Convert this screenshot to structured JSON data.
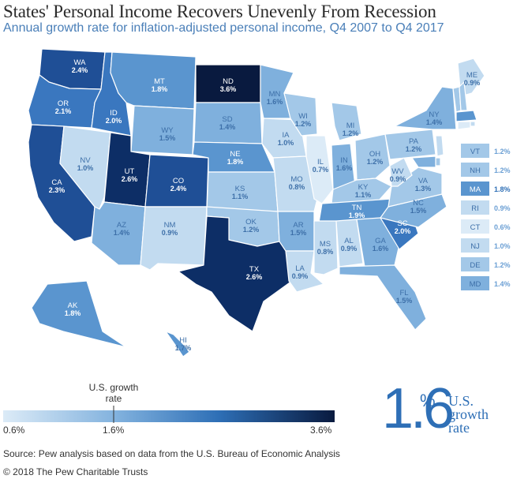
{
  "header": {
    "title": "States' Personal Income Recovers Unevenly From Recession",
    "subtitle": "Annual growth rate for inflation-adjusted personal income, Q4 2007 to Q4 2017"
  },
  "colors": {
    "scale": [
      "#dcebf7",
      "#c2dbf0",
      "#a3c8e8",
      "#7fb0dd",
      "#5a95cf",
      "#3a77bf",
      "#1f4f96",
      "#0d2e66",
      "#091a3f"
    ],
    "label_light": "#ffffff",
    "label_dark": "#3d6fa8",
    "accent": "#2e6fb6"
  },
  "chart_data": {
    "type": "choropleth",
    "title": "States' Personal Income Recovers Unevenly From Recession",
    "subtitle": "Annual growth rate for inflation-adjusted personal income, Q4 2007 to Q4 2017",
    "unit": "%",
    "scale_min": 0.6,
    "scale_max": 3.6,
    "us_rate": 1.6,
    "states": [
      {
        "abbr": "WA",
        "value": 2.4
      },
      {
        "abbr": "OR",
        "value": 2.1
      },
      {
        "abbr": "CA",
        "value": 2.3
      },
      {
        "abbr": "ID",
        "value": 2.0
      },
      {
        "abbr": "NV",
        "value": 1.0
      },
      {
        "abbr": "MT",
        "value": 1.8
      },
      {
        "abbr": "WY",
        "value": 1.5
      },
      {
        "abbr": "UT",
        "value": 2.6
      },
      {
        "abbr": "AZ",
        "value": 1.4
      },
      {
        "abbr": "CO",
        "value": 2.4
      },
      {
        "abbr": "NM",
        "value": 0.9
      },
      {
        "abbr": "ND",
        "value": 3.6
      },
      {
        "abbr": "SD",
        "value": 1.4
      },
      {
        "abbr": "NE",
        "value": 1.8
      },
      {
        "abbr": "KS",
        "value": 1.1
      },
      {
        "abbr": "OK",
        "value": 1.2
      },
      {
        "abbr": "TX",
        "value": 2.6
      },
      {
        "abbr": "MN",
        "value": 1.6
      },
      {
        "abbr": "IA",
        "value": 1.0
      },
      {
        "abbr": "MO",
        "value": 0.8
      },
      {
        "abbr": "AR",
        "value": 1.5
      },
      {
        "abbr": "LA",
        "value": 0.9
      },
      {
        "abbr": "WI",
        "value": 1.2
      },
      {
        "abbr": "IL",
        "value": 0.7
      },
      {
        "abbr": "MI",
        "value": 1.2
      },
      {
        "abbr": "IN",
        "value": 1.6
      },
      {
        "abbr": "OH",
        "value": 1.2
      },
      {
        "abbr": "KY",
        "value": 1.1
      },
      {
        "abbr": "TN",
        "value": 1.9
      },
      {
        "abbr": "MS",
        "value": 0.8
      },
      {
        "abbr": "AL",
        "value": 0.9
      },
      {
        "abbr": "GA",
        "value": 1.6
      },
      {
        "abbr": "FL",
        "value": 1.5
      },
      {
        "abbr": "SC",
        "value": 2.0
      },
      {
        "abbr": "NC",
        "value": 1.5
      },
      {
        "abbr": "VA",
        "value": 1.3
      },
      {
        "abbr": "WV",
        "value": 0.9
      },
      {
        "abbr": "PA",
        "value": 1.2
      },
      {
        "abbr": "NY",
        "value": 1.4
      },
      {
        "abbr": "ME",
        "value": 0.9
      },
      {
        "abbr": "AK",
        "value": 1.8
      },
      {
        "abbr": "HI",
        "value": 1.7
      },
      {
        "abbr": "VT",
        "value": 1.2
      },
      {
        "abbr": "NH",
        "value": 1.2
      },
      {
        "abbr": "MA",
        "value": 1.8
      },
      {
        "abbr": "RI",
        "value": 0.9
      },
      {
        "abbr": "CT",
        "value": 0.6
      },
      {
        "abbr": "NJ",
        "value": 1.0
      },
      {
        "abbr": "DE",
        "value": 1.2
      },
      {
        "abbr": "MD",
        "value": 1.4
      }
    ]
  },
  "legend": {
    "us_rate_label": "U.S. growth rate",
    "tick_min": "0.6%",
    "tick_mid": "1.6%",
    "tick_max": "3.6%"
  },
  "callout": {
    "value": "1.6",
    "pct": "%",
    "caption_line1": "U.S.",
    "caption_line2": "growth",
    "caption_line3": "rate"
  },
  "footer": {
    "source": "Source: Pew analysis based on data from the U.S. Bureau of Economic Analysis",
    "copyright": "© 2018 The Pew Charitable Trusts"
  }
}
